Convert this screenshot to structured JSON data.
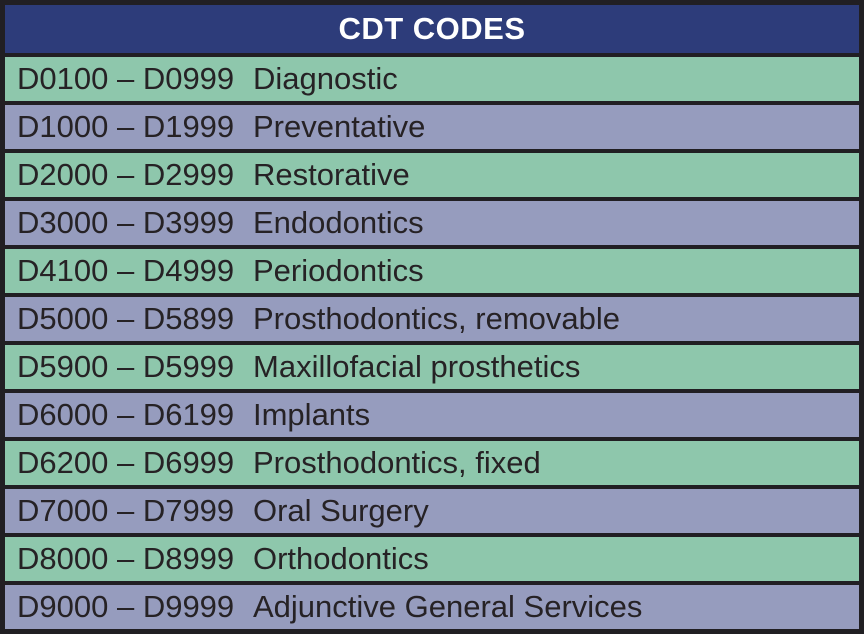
{
  "table": {
    "title": "CDT CODES",
    "rows": [
      {
        "code": "D0100 – D0999",
        "label": "Diagnostic"
      },
      {
        "code": "D1000 – D1999",
        "label": "Preventative"
      },
      {
        "code": "D2000 – D2999",
        "label": "Restorative"
      },
      {
        "code": "D3000 – D3999",
        "label": "Endodontics"
      },
      {
        "code": "D4100 – D4999",
        "label": "Periodontics"
      },
      {
        "code": "D5000 – D5899",
        "label": "Prosthodontics, removable"
      },
      {
        "code": "D5900 – D5999",
        "label": "Maxillofacial prosthetics"
      },
      {
        "code": "D6000 – D6199",
        "label": "Implants"
      },
      {
        "code": "D6200 – D6999",
        "label": "Prosthodontics, fixed"
      },
      {
        "code": "D7000 – D7999",
        "label": "Oral Surgery"
      },
      {
        "code": "D8000 – D8999",
        "label": "Orthodontics"
      },
      {
        "code": "D9000 – D9999",
        "label": "Adjunctive General Services"
      }
    ],
    "colors": {
      "header_bg": "#2d3c7a",
      "header_text": "#ffffff",
      "row_green": "#8ec7ac",
      "row_blue": "#969cbe",
      "border": "#211f23",
      "row_text": "#262225"
    }
  }
}
